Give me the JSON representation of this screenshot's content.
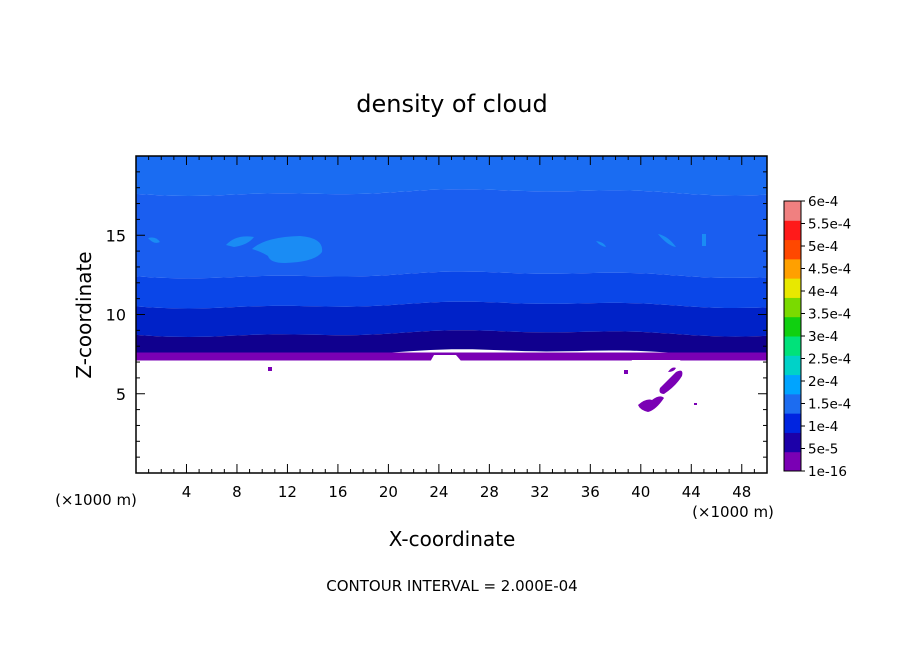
{
  "chart_data": {
    "type": "heatmap",
    "title": "density of cloud",
    "xlabel": "X-coordinate",
    "ylabel": "Z-coordinate",
    "x_unit_left": "(×1000 m)",
    "x_unit_right": "(×1000 m)",
    "footer": "CONTOUR INTERVAL = 2.000E-04",
    "xlim": [
      0,
      50
    ],
    "ylim": [
      0,
      20
    ],
    "x_ticks": [
      4,
      8,
      12,
      16,
      20,
      24,
      28,
      32,
      36,
      40,
      44,
      48
    ],
    "x_tick_labels": [
      "4",
      "8",
      "12",
      "16",
      "20",
      "24",
      "28",
      "32",
      "36",
      "40",
      "44",
      "48"
    ],
    "y_ticks": [
      5,
      10,
      15
    ],
    "y_tick_labels": [
      "5",
      "10",
      "15"
    ],
    "colorbar": {
      "levels": [
        "1e-16",
        "5e-5",
        "1e-4",
        "1.5e-4",
        "2e-4",
        "2.5e-4",
        "3e-4",
        "3.5e-4",
        "4e-4",
        "4.5e-4",
        "5e-4",
        "5.5e-4",
        "6e-4"
      ],
      "colors": [
        "#7a00b4",
        "#1c00a8",
        "#0024e0",
        "#1c6cf0",
        "#00a4ff",
        "#00d2c8",
        "#00e27a",
        "#10d010",
        "#7ada00",
        "#e8e800",
        "#ffa000",
        "#ff4800",
        "#ff1a1a",
        "#f08080"
      ]
    },
    "layers": [
      {
        "z_from": 19.7,
        "z_to": 17.7,
        "value": "1e-4 to 1.5e-4",
        "color": "#1a6cf2"
      },
      {
        "z_from": 17.7,
        "z_to": 12.5,
        "value": "1e-4 to 1.5e-4",
        "color": "#1a5ef0"
      },
      {
        "z_from": 12.5,
        "z_to": 10.6,
        "value": "5e-5 to 1e-4",
        "color": "#0a46e8"
      },
      {
        "z_from": 10.6,
        "z_to": 8.8,
        "value": "5e-5 to 1e-4",
        "color": "#0022c8"
      },
      {
        "z_from": 8.8,
        "z_to": 7.6,
        "value": "1e-16 to 5e-5",
        "color": "#10008e"
      },
      {
        "z_from": 7.6,
        "z_to": 7.1,
        "value": "1e-16 to 5e-5",
        "color": "#7a00b4"
      }
    ],
    "cloud_base_z": 7.1
  }
}
